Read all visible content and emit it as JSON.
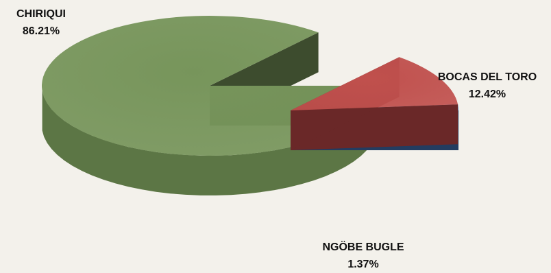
{
  "chart_data": {
    "type": "pie",
    "style": "3d-exploded",
    "slices": [
      {
        "label": "CHIRIQUI",
        "value": 86.21,
        "value_label": "86.21%",
        "color": "#77955b",
        "side_color": "#5c7645",
        "shade_color": "#3d4c2e"
      },
      {
        "label": "BOCAS DEL TORO",
        "value": 12.42,
        "value_label": "12.42%",
        "color": "#c0504d",
        "side_color": "#6a2828",
        "shade_color": "#6a2828"
      },
      {
        "label": "NGÖBE BUGLE",
        "value": 1.37,
        "value_label": "1.37%",
        "color": "#4f81bd",
        "side_color": "#233c60",
        "shade_color": "#233c60"
      }
    ]
  }
}
